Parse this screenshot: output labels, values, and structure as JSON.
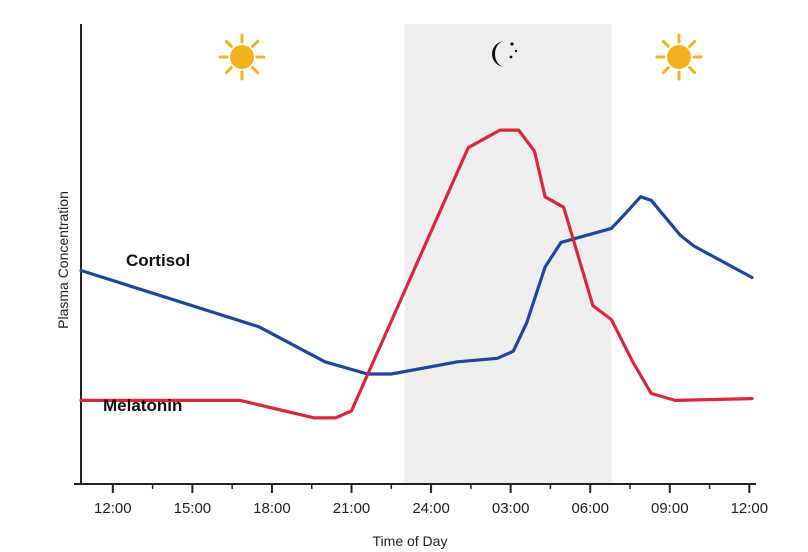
{
  "chart_data": {
    "type": "line",
    "title": "",
    "xlabel": "Time of Day",
    "ylabel": "Plasma Concentration",
    "x_ticks": [
      "12:00",
      "15:00",
      "18:00",
      "21:00",
      "24:00",
      "03:00",
      "06:00",
      "09:00",
      "12:00"
    ],
    "x_range_hours": [
      10.8,
      36.1
    ],
    "y_range": [
      0,
      100
    ],
    "y_tick_labels": false,
    "grid": false,
    "night_band_hours": [
      23.0,
      30.8
    ],
    "day_icon": "sun-icon",
    "night_icon": "moon-icon",
    "series": [
      {
        "name": "Cortisol",
        "color": "#1a47a0",
        "points": [
          [
            10.8,
            50
          ],
          [
            17.5,
            34
          ],
          [
            20.0,
            24
          ],
          [
            21.6,
            20.5
          ],
          [
            22.5,
            20.5
          ],
          [
            25.0,
            24
          ],
          [
            26.5,
            25
          ],
          [
            27.1,
            27
          ],
          [
            27.6,
            35
          ],
          [
            28.3,
            51
          ],
          [
            28.9,
            58
          ],
          [
            30.8,
            62
          ],
          [
            31.3,
            66
          ],
          [
            31.9,
            71
          ],
          [
            32.3,
            70
          ],
          [
            33.4,
            60
          ],
          [
            33.9,
            57
          ],
          [
            36.1,
            48
          ]
        ]
      },
      {
        "name": "Melatonin",
        "color": "#d9283a",
        "points": [
          [
            10.8,
            13
          ],
          [
            16.8,
            13
          ],
          [
            19.6,
            8
          ],
          [
            20.4,
            8
          ],
          [
            21.0,
            10
          ],
          [
            25.4,
            85
          ],
          [
            26.6,
            90
          ],
          [
            27.3,
            90
          ],
          [
            27.9,
            84
          ],
          [
            28.3,
            71
          ],
          [
            29.0,
            68
          ],
          [
            30.1,
            40
          ],
          [
            30.8,
            36
          ],
          [
            31.6,
            24
          ],
          [
            32.3,
            15
          ],
          [
            33.2,
            13
          ],
          [
            36.1,
            13.5
          ]
        ]
      }
    ]
  }
}
